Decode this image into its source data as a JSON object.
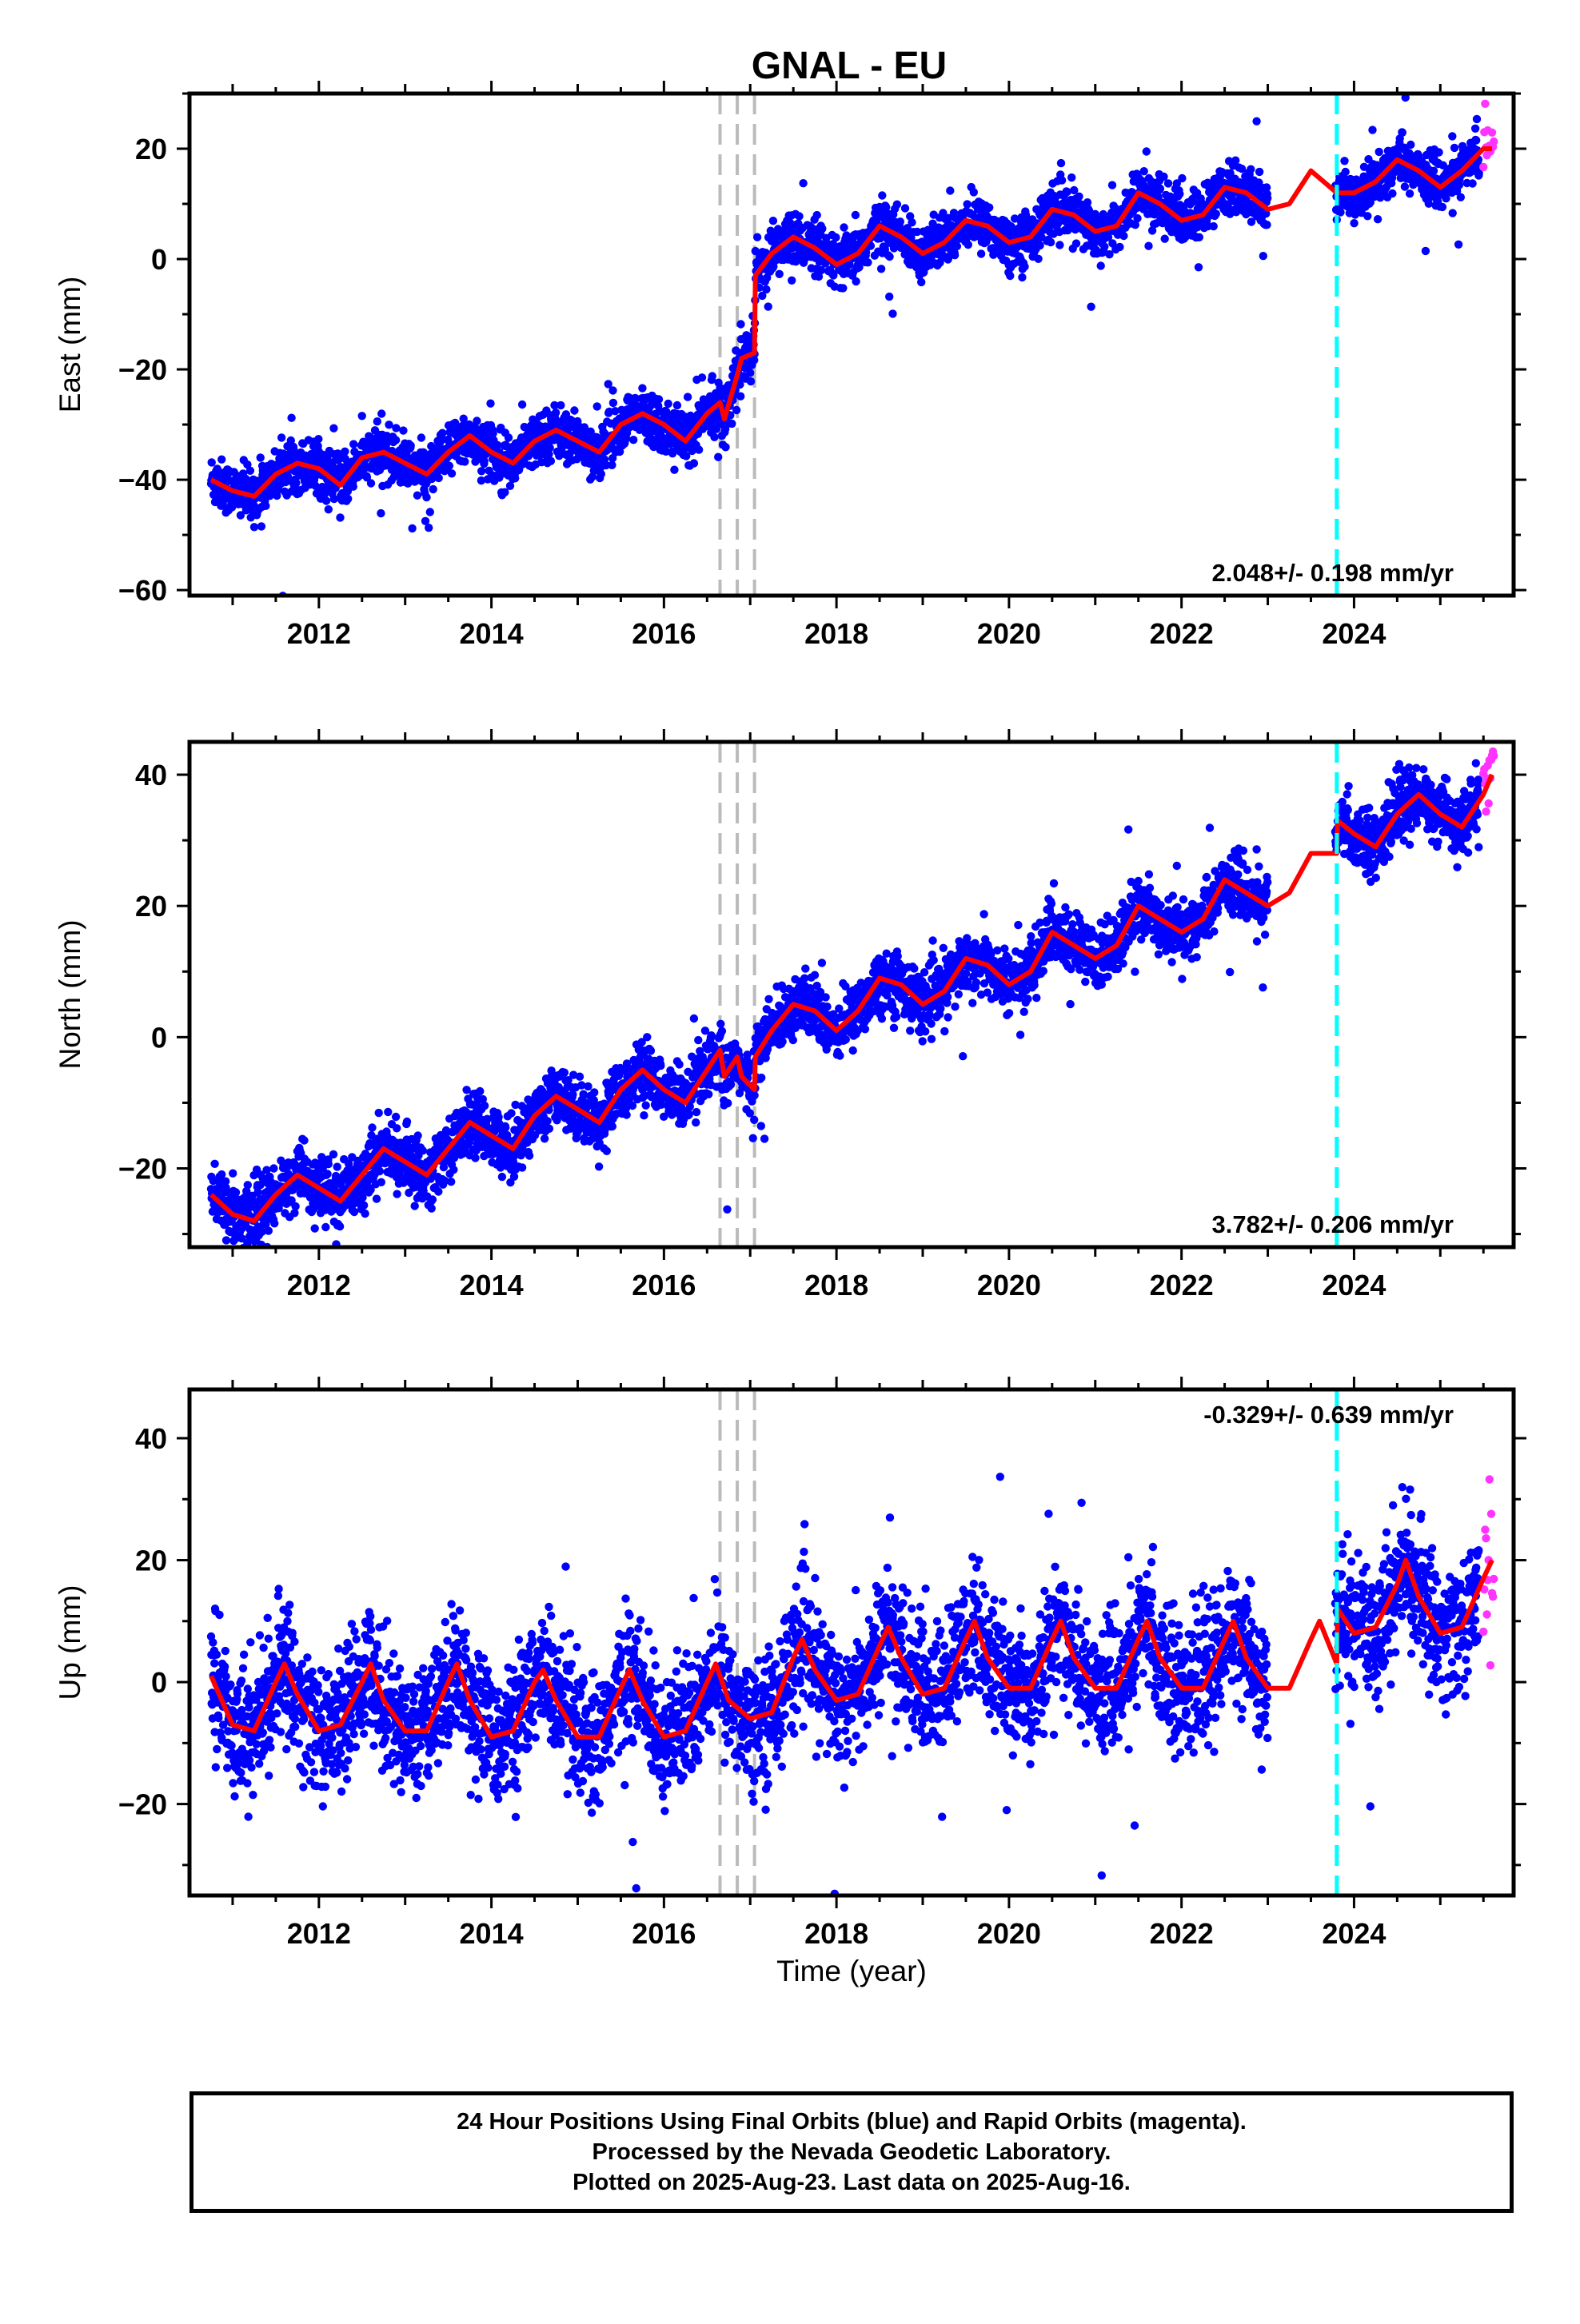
{
  "title": "GNAL - EU",
  "colors": {
    "final_points": "#0000ff",
    "rapid_points": "#ff33ff",
    "model_fit": "#ff0000",
    "equipment_change": "#bbbbbb",
    "event_line": "#00ffff"
  },
  "xlabel": "Time (year)",
  "caption": [
    "24 Hour Positions Using Final Orbits (blue) and Rapid Orbits (magenta).",
    "Processed by the Nevada Geodetic Laboratory.",
    "Plotted on 2025-Aug-23. Last data on 2025-Aug-16."
  ],
  "chart_data": [
    {
      "type": "scatter",
      "name": "east",
      "ylabel": "East (mm)",
      "rate": "2.048+/- 0.198 mm/yr",
      "xlim": [
        2010.5,
        2025.85
      ],
      "ylim": [
        -61,
        30
      ],
      "xticks": [
        2012,
        2014,
        2016,
        2018,
        2020,
        2022,
        2024
      ],
      "yticks": [
        -60,
        -40,
        -20,
        0,
        20
      ],
      "vlines_gray": [
        2016.65,
        2016.85,
        2017.05
      ],
      "vline_cyan": 2023.8,
      "data_span": [
        2010.75,
        2025.45
      ],
      "rapid_span": [
        2025.5,
        2025.62
      ],
      "model": [
        [
          2010.75,
          -40
        ],
        [
          2011.0,
          -42
        ],
        [
          2011.25,
          -43
        ],
        [
          2011.5,
          -39
        ],
        [
          2011.75,
          -37
        ],
        [
          2012.0,
          -38
        ],
        [
          2012.25,
          -41
        ],
        [
          2012.5,
          -36
        ],
        [
          2012.75,
          -35
        ],
        [
          2013.0,
          -37
        ],
        [
          2013.25,
          -39
        ],
        [
          2013.5,
          -35
        ],
        [
          2013.75,
          -32
        ],
        [
          2014.0,
          -35
        ],
        [
          2014.25,
          -37
        ],
        [
          2014.5,
          -33
        ],
        [
          2014.75,
          -31
        ],
        [
          2015.0,
          -33
        ],
        [
          2015.25,
          -35
        ],
        [
          2015.5,
          -30
        ],
        [
          2015.75,
          -28
        ],
        [
          2016.0,
          -30
        ],
        [
          2016.25,
          -33
        ],
        [
          2016.5,
          -28
        ],
        [
          2016.65,
          -26
        ],
        [
          2016.7,
          -29
        ],
        [
          2016.85,
          -21
        ],
        [
          2016.9,
          -18
        ],
        [
          2017.05,
          -17
        ],
        [
          2017.06,
          -3
        ],
        [
          2017.25,
          1
        ],
        [
          2017.5,
          4
        ],
        [
          2017.75,
          2
        ],
        [
          2018.0,
          -1
        ],
        [
          2018.25,
          1
        ],
        [
          2018.5,
          6
        ],
        [
          2018.75,
          4
        ],
        [
          2019.0,
          1
        ],
        [
          2019.25,
          3
        ],
        [
          2019.5,
          7
        ],
        [
          2019.75,
          6
        ],
        [
          2020.0,
          3
        ],
        [
          2020.25,
          4
        ],
        [
          2020.5,
          9
        ],
        [
          2020.75,
          8
        ],
        [
          2021.0,
          5
        ],
        [
          2021.25,
          6
        ],
        [
          2021.5,
          12
        ],
        [
          2021.75,
          10
        ],
        [
          2022.0,
          7
        ],
        [
          2022.25,
          8
        ],
        [
          2022.5,
          13
        ],
        [
          2022.75,
          12
        ],
        [
          2023.0,
          9
        ],
        [
          2023.25,
          10
        ],
        [
          2023.5,
          16
        ],
        [
          2023.8,
          12
        ],
        [
          2024.0,
          12
        ],
        [
          2024.25,
          14
        ],
        [
          2024.5,
          18
        ],
        [
          2024.75,
          16
        ],
        [
          2025.0,
          13
        ],
        [
          2025.25,
          16
        ],
        [
          2025.5,
          20
        ],
        [
          2025.6,
          20
        ]
      ]
    },
    {
      "type": "scatter",
      "name": "north",
      "ylabel": "North (mm)",
      "rate": "3.782+/- 0.206 mm/yr",
      "xlim": [
        2010.5,
        2025.85
      ],
      "ylim": [
        -32,
        45
      ],
      "xticks": [
        2012,
        2014,
        2016,
        2018,
        2020,
        2022,
        2024
      ],
      "yticks": [
        -20,
        0,
        20,
        40
      ],
      "vlines_gray": [
        2016.65,
        2016.85,
        2017.05
      ],
      "vline_cyan": 2023.8,
      "data_span": [
        2010.75,
        2025.45
      ],
      "rapid_span": [
        2025.5,
        2025.62
      ],
      "model": [
        [
          2010.75,
          -24
        ],
        [
          2011.0,
          -27
        ],
        [
          2011.25,
          -28
        ],
        [
          2011.5,
          -24
        ],
        [
          2011.75,
          -21
        ],
        [
          2012.0,
          -23
        ],
        [
          2012.25,
          -25
        ],
        [
          2012.5,
          -21
        ],
        [
          2012.75,
          -17
        ],
        [
          2013.0,
          -19
        ],
        [
          2013.25,
          -21
        ],
        [
          2013.5,
          -17
        ],
        [
          2013.75,
          -13
        ],
        [
          2014.0,
          -15
        ],
        [
          2014.25,
          -17
        ],
        [
          2014.5,
          -12
        ],
        [
          2014.75,
          -9
        ],
        [
          2015.0,
          -11
        ],
        [
          2015.25,
          -13
        ],
        [
          2015.5,
          -8
        ],
        [
          2015.75,
          -5
        ],
        [
          2016.0,
          -8
        ],
        [
          2016.25,
          -10
        ],
        [
          2016.5,
          -5
        ],
        [
          2016.65,
          -2
        ],
        [
          2016.7,
          -6
        ],
        [
          2016.85,
          -3
        ],
        [
          2016.9,
          -6
        ],
        [
          2017.05,
          -8
        ],
        [
          2017.06,
          -3
        ],
        [
          2017.25,
          1
        ],
        [
          2017.5,
          5
        ],
        [
          2017.75,
          4
        ],
        [
          2018.0,
          1
        ],
        [
          2018.25,
          4
        ],
        [
          2018.5,
          9
        ],
        [
          2018.75,
          8
        ],
        [
          2019.0,
          5
        ],
        [
          2019.25,
          7
        ],
        [
          2019.5,
          12
        ],
        [
          2019.75,
          11
        ],
        [
          2020.0,
          8
        ],
        [
          2020.25,
          10
        ],
        [
          2020.5,
          16
        ],
        [
          2020.75,
          14
        ],
        [
          2021.0,
          12
        ],
        [
          2021.25,
          14
        ],
        [
          2021.5,
          20
        ],
        [
          2021.75,
          18
        ],
        [
          2022.0,
          16
        ],
        [
          2022.25,
          18
        ],
        [
          2022.5,
          24
        ],
        [
          2022.75,
          22
        ],
        [
          2023.0,
          20
        ],
        [
          2023.25,
          22
        ],
        [
          2023.5,
          28
        ],
        [
          2023.8,
          28
        ],
        [
          2023.81,
          33
        ],
        [
          2024.0,
          31
        ],
        [
          2024.25,
          29
        ],
        [
          2024.5,
          34
        ],
        [
          2024.75,
          37
        ],
        [
          2025.0,
          34
        ],
        [
          2025.25,
          32
        ],
        [
          2025.5,
          37
        ],
        [
          2025.6,
          40
        ]
      ]
    },
    {
      "type": "scatter",
      "name": "up",
      "ylabel": "Up (mm)",
      "rate": "-0.329+/- 0.639 mm/yr",
      "xlim": [
        2010.5,
        2025.85
      ],
      "ylim": [
        -35,
        48
      ],
      "xticks": [
        2012,
        2014,
        2016,
        2018,
        2020,
        2022,
        2024
      ],
      "yticks": [
        -20,
        0,
        20,
        40
      ],
      "vlines_gray": [
        2016.65,
        2016.85,
        2017.05
      ],
      "vline_cyan": 2023.8,
      "data_span": [
        2010.75,
        2025.45
      ],
      "rapid_span": [
        2025.5,
        2025.62
      ],
      "model": [
        [
          2010.75,
          1
        ],
        [
          2011.0,
          -7
        ],
        [
          2011.25,
          -8
        ],
        [
          2011.5,
          0
        ],
        [
          2011.6,
          3
        ],
        [
          2011.75,
          -2
        ],
        [
          2012.0,
          -8
        ],
        [
          2012.25,
          -7
        ],
        [
          2012.5,
          0
        ],
        [
          2012.6,
          3
        ],
        [
          2012.75,
          -3
        ],
        [
          2013.0,
          -8
        ],
        [
          2013.25,
          -8
        ],
        [
          2013.5,
          0
        ],
        [
          2013.6,
          3
        ],
        [
          2013.75,
          -3
        ],
        [
          2014.0,
          -9
        ],
        [
          2014.25,
          -8
        ],
        [
          2014.5,
          0
        ],
        [
          2014.6,
          2
        ],
        [
          2014.75,
          -3
        ],
        [
          2015.0,
          -9
        ],
        [
          2015.25,
          -9
        ],
        [
          2015.5,
          -1
        ],
        [
          2015.6,
          2
        ],
        [
          2015.75,
          -3
        ],
        [
          2016.0,
          -9
        ],
        [
          2016.25,
          -8
        ],
        [
          2016.5,
          0
        ],
        [
          2016.6,
          3
        ],
        [
          2016.75,
          -3
        ],
        [
          2017.0,
          -6
        ],
        [
          2017.25,
          -5
        ],
        [
          2017.5,
          4
        ],
        [
          2017.6,
          7
        ],
        [
          2017.75,
          2
        ],
        [
          2018.0,
          -3
        ],
        [
          2018.25,
          -2
        ],
        [
          2018.5,
          6
        ],
        [
          2018.6,
          9
        ],
        [
          2018.75,
          4
        ],
        [
          2019.0,
          -2
        ],
        [
          2019.25,
          -1
        ],
        [
          2019.5,
          7
        ],
        [
          2019.6,
          10
        ],
        [
          2019.75,
          4
        ],
        [
          2020.0,
          -1
        ],
        [
          2020.25,
          -1
        ],
        [
          2020.5,
          7
        ],
        [
          2020.6,
          10
        ],
        [
          2020.75,
          4
        ],
        [
          2021.0,
          -1
        ],
        [
          2021.25,
          -1
        ],
        [
          2021.5,
          7
        ],
        [
          2021.6,
          10
        ],
        [
          2021.75,
          4
        ],
        [
          2022.0,
          -1
        ],
        [
          2022.25,
          -1
        ],
        [
          2022.5,
          7
        ],
        [
          2022.6,
          10
        ],
        [
          2022.75,
          4
        ],
        [
          2023.0,
          -1
        ],
        [
          2023.25,
          -1
        ],
        [
          2023.5,
          7
        ],
        [
          2023.6,
          10
        ],
        [
          2023.8,
          3
        ],
        [
          2023.81,
          12
        ],
        [
          2024.0,
          8
        ],
        [
          2024.25,
          9
        ],
        [
          2024.5,
          16
        ],
        [
          2024.6,
          20
        ],
        [
          2024.75,
          14
        ],
        [
          2025.0,
          8
        ],
        [
          2025.25,
          9
        ],
        [
          2025.5,
          17
        ],
        [
          2025.6,
          20
        ]
      ]
    }
  ]
}
